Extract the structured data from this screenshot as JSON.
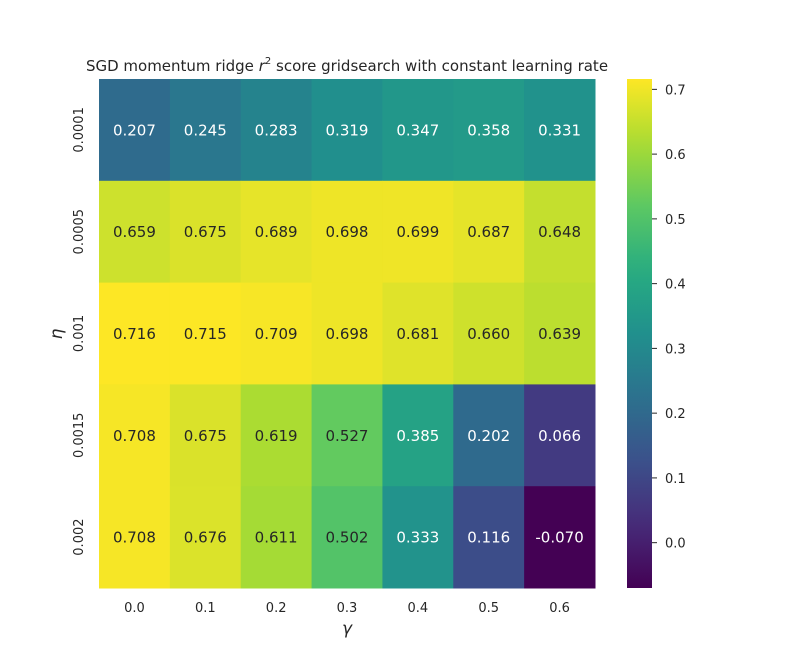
{
  "chart_data": {
    "type": "heatmap",
    "title_main": "SGD momentum ridge ",
    "title_var": "r",
    "title_sup": "2",
    "title_rest": " score gridsearch with constant learning rate",
    "xlabel": "γ",
    "ylabel": "η",
    "x_categories": [
      "0.0",
      "0.1",
      "0.2",
      "0.3",
      "0.4",
      "0.5",
      "0.6"
    ],
    "y_categories": [
      "0.0001",
      "0.0005",
      "0.001",
      "0.0015",
      "0.002"
    ],
    "values": [
      [
        0.207,
        0.245,
        0.283,
        0.319,
        0.347,
        0.358,
        0.331
      ],
      [
        0.659,
        0.675,
        0.689,
        0.698,
        0.699,
        0.687,
        0.648
      ],
      [
        0.716,
        0.715,
        0.709,
        0.698,
        0.681,
        0.66,
        0.639
      ],
      [
        0.708,
        0.675,
        0.619,
        0.527,
        0.385,
        0.202,
        0.066
      ],
      [
        0.708,
        0.676,
        0.611,
        0.502,
        0.333,
        0.116,
        -0.07
      ]
    ],
    "value_labels": [
      [
        "0.207",
        "0.245",
        "0.283",
        "0.319",
        "0.347",
        "0.358",
        "0.331"
      ],
      [
        "0.659",
        "0.675",
        "0.689",
        "0.698",
        "0.699",
        "0.687",
        "0.648"
      ],
      [
        "0.716",
        "0.715",
        "0.709",
        "0.698",
        "0.681",
        "0.660",
        "0.639"
      ],
      [
        "0.708",
        "0.675",
        "0.619",
        "0.527",
        "0.385",
        "0.202",
        "0.066"
      ],
      [
        "0.708",
        "0.676",
        "0.611",
        "0.502",
        "0.333",
        "0.116",
        "-0.070"
      ]
    ],
    "colormap": "viridis",
    "vmin": -0.07,
    "vmax": 0.716,
    "colorbar_ticks": [
      0.0,
      0.1,
      0.2,
      0.3,
      0.4,
      0.5,
      0.6,
      0.7
    ],
    "colorbar_tick_labels": [
      "0.0",
      "0.1",
      "0.2",
      "0.3",
      "0.4",
      "0.5",
      "0.6",
      "0.7"
    ]
  }
}
